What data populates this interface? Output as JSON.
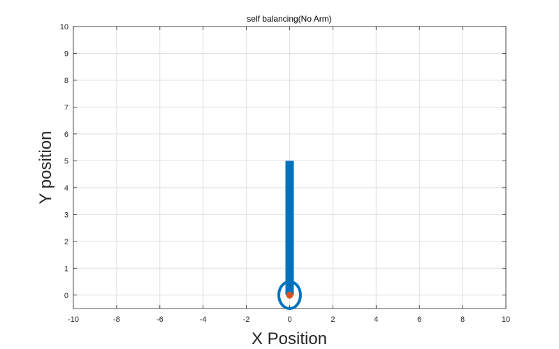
{
  "chart_data": {
    "type": "line",
    "title": "self balancing(No Arm)",
    "xlabel": "X Position",
    "ylabel": "Y position",
    "xlim": [
      -10,
      10
    ],
    "ylim": [
      -0.5,
      10
    ],
    "xticks": [
      -10,
      -8,
      -6,
      -4,
      -2,
      0,
      2,
      4,
      6,
      8,
      10
    ],
    "yticks": [
      0,
      1,
      2,
      3,
      4,
      5,
      6,
      7,
      8,
      9,
      10
    ],
    "xtick_labels": [
      "-10",
      "-8",
      "-6",
      "-4",
      "-2",
      "0",
      "2",
      "4",
      "6",
      "8",
      "10"
    ],
    "ytick_labels": [
      "0",
      "1",
      "2",
      "3",
      "4",
      "5",
      "6",
      "7",
      "8",
      "9",
      "10"
    ],
    "grid": true,
    "shapes": [
      {
        "type": "line",
        "x": [
          0,
          0
        ],
        "y": [
          0,
          5
        ],
        "color": "#0072BD"
      },
      {
        "type": "circle",
        "center": [
          0,
          0
        ],
        "radius": 0.5,
        "color": "#0072BD"
      },
      {
        "type": "point",
        "x": 0,
        "y": 0,
        "color": "#D95319"
      }
    ]
  }
}
